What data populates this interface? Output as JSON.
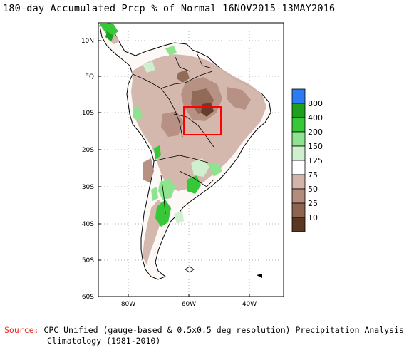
{
  "title": "180-day Accumulated Prcp % of Normal 16NOV2015-13MAY2016",
  "latitude_labels": [
    "10N",
    "EQ",
    "10S",
    "20S",
    "30S",
    "40S",
    "50S",
    "60S"
  ],
  "longitude_labels": [
    "80W",
    "60W",
    "40W"
  ],
  "legend": {
    "labels": [
      "800",
      "400",
      "200",
      "150",
      "125",
      "75",
      "50",
      "25",
      "10"
    ],
    "colors": [
      "#2c7bf2",
      "#1ea01e",
      "#37c837",
      "#8ee38e",
      "#cfefcf",
      "#ffffff",
      "#d2b4aa",
      "#b48c7d",
      "#8c6450",
      "#5a3723"
    ]
  },
  "highlight_box_color": "#ff0000",
  "source": {
    "label": "Source:",
    "line1": "CPC Unified (gauge-based & 0.5x0.5 deg resolution) Precipitation Analysis",
    "line2": "Climatology (1981-2010)"
  }
}
